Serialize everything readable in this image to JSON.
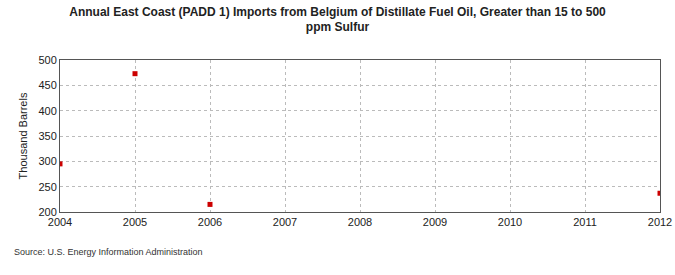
{
  "chart_data": {
    "type": "scatter",
    "title": "Annual East Coast (PADD 1) Imports from Belgium of Distillate Fuel Oil, Greater than 15 to 500 ppm Sulfur",
    "y_label": "Thousand Barrels",
    "annotations": [
      "Source: U.S. Energy Information Administration"
    ],
    "x": [
      2004,
      2005,
      2006,
      2012
    ],
    "values": [
      295,
      473,
      215,
      237
    ],
    "color": "#cc0000",
    "marker": "square",
    "xlim": [
      2004,
      2012
    ],
    "xticks": [
      2004,
      2005,
      2006,
      2007,
      2008,
      2009,
      2010,
      2011,
      2012
    ],
    "ylim": [
      200,
      500
    ],
    "yticks": [
      200,
      250,
      300,
      350,
      400,
      450,
      500
    ],
    "grid": true
  }
}
